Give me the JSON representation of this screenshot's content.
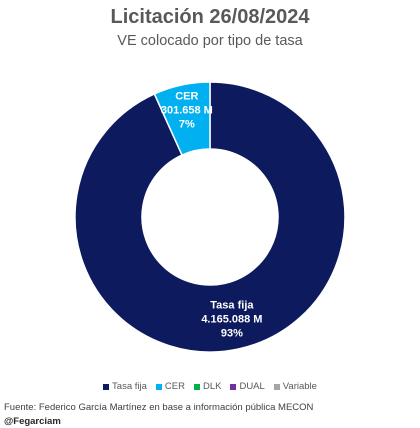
{
  "chart_data": {
    "type": "pie",
    "title": "Licitación 26/08/2024",
    "subtitle": "VE colocado por tipo de tasa",
    "donut": true,
    "series": [
      {
        "name": "Tasa fija",
        "value": 4165.088,
        "value_label": "4.165.088 M",
        "percent_label": "93%",
        "color": "#0d1a5e"
      },
      {
        "name": "CER",
        "value": 301.658,
        "value_label": "301.658 M",
        "percent_label": "7%",
        "color": "#00b0f0"
      },
      {
        "name": "DLK",
        "value": 0,
        "value_label": "",
        "percent_label": "",
        "color": "#00b050"
      },
      {
        "name": "DUAL",
        "value": 0,
        "value_label": "",
        "percent_label": "",
        "color": "#7030a0"
      },
      {
        "name": "Variable",
        "value": 0,
        "value_label": "",
        "percent_label": "",
        "color": "#a6a6a6"
      }
    ],
    "legend_position": "bottom"
  },
  "footer": {
    "source": "Fuente: Federico García Martínez en base a información pública MECON",
    "handle": "@Fegarciam"
  }
}
